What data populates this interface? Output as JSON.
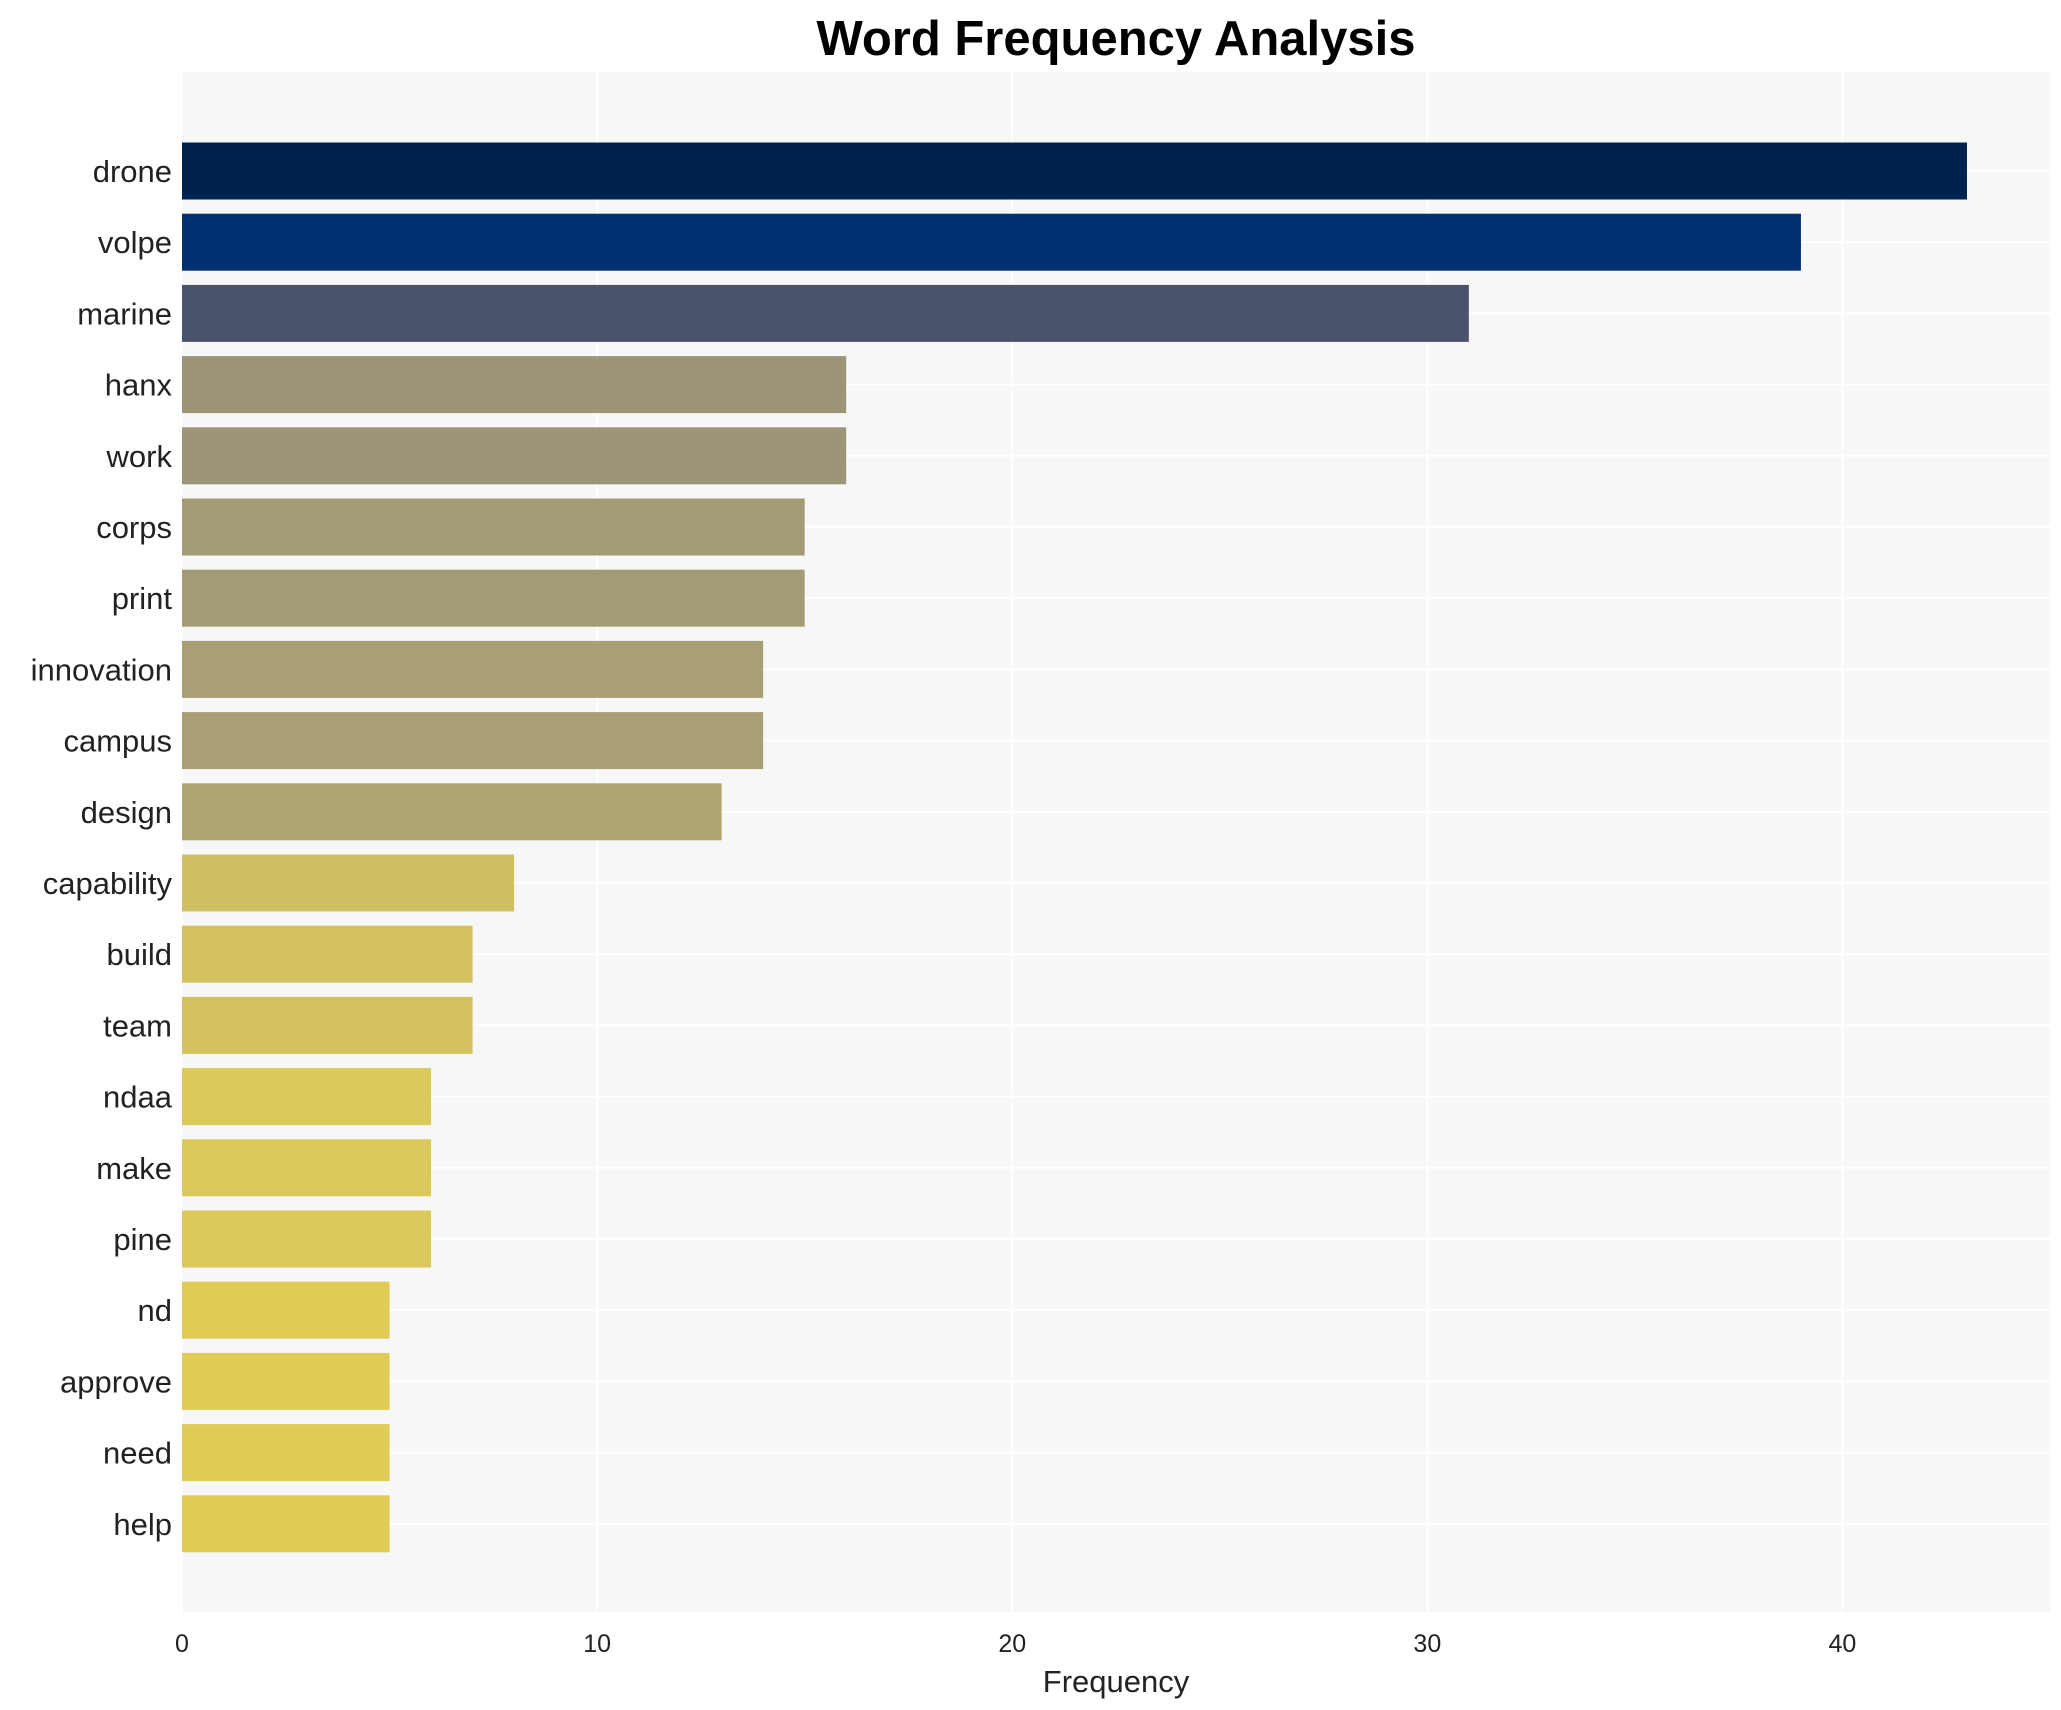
{
  "chart_data": {
    "type": "bar",
    "orientation": "horizontal",
    "title": "Word Frequency Analysis",
    "xlabel": "Frequency",
    "ylabel": "",
    "xlim": [
      0,
      45
    ],
    "xticks": [
      0,
      10,
      20,
      30,
      40
    ],
    "grid": true,
    "legend": "none",
    "categories": [
      "drone",
      "volpe",
      "marine",
      "hanx",
      "work",
      "corps",
      "print",
      "innovation",
      "campus",
      "design",
      "capability",
      "build",
      "team",
      "ndaa",
      "make",
      "pine",
      "nd",
      "approve",
      "need",
      "help"
    ],
    "values": [
      43,
      39,
      31,
      16,
      16,
      15,
      15,
      14,
      14,
      13,
      8,
      7,
      7,
      6,
      6,
      6,
      5,
      5,
      5,
      5
    ],
    "colors": [
      "#00224e",
      "#00306f",
      "#4a536b",
      "#9c9577",
      "#9c9577",
      "#a39b76",
      "#a39b76",
      "#a8a074",
      "#a8a074",
      "#afa572",
      "#cec062",
      "#d3c25f",
      "#d3c25f",
      "#dbc85b",
      "#dbc85b",
      "#dbc85b",
      "#e0cb57",
      "#e0cb57",
      "#e0cb57",
      "#e0cb57"
    ],
    "background": "#f7f7f7"
  }
}
